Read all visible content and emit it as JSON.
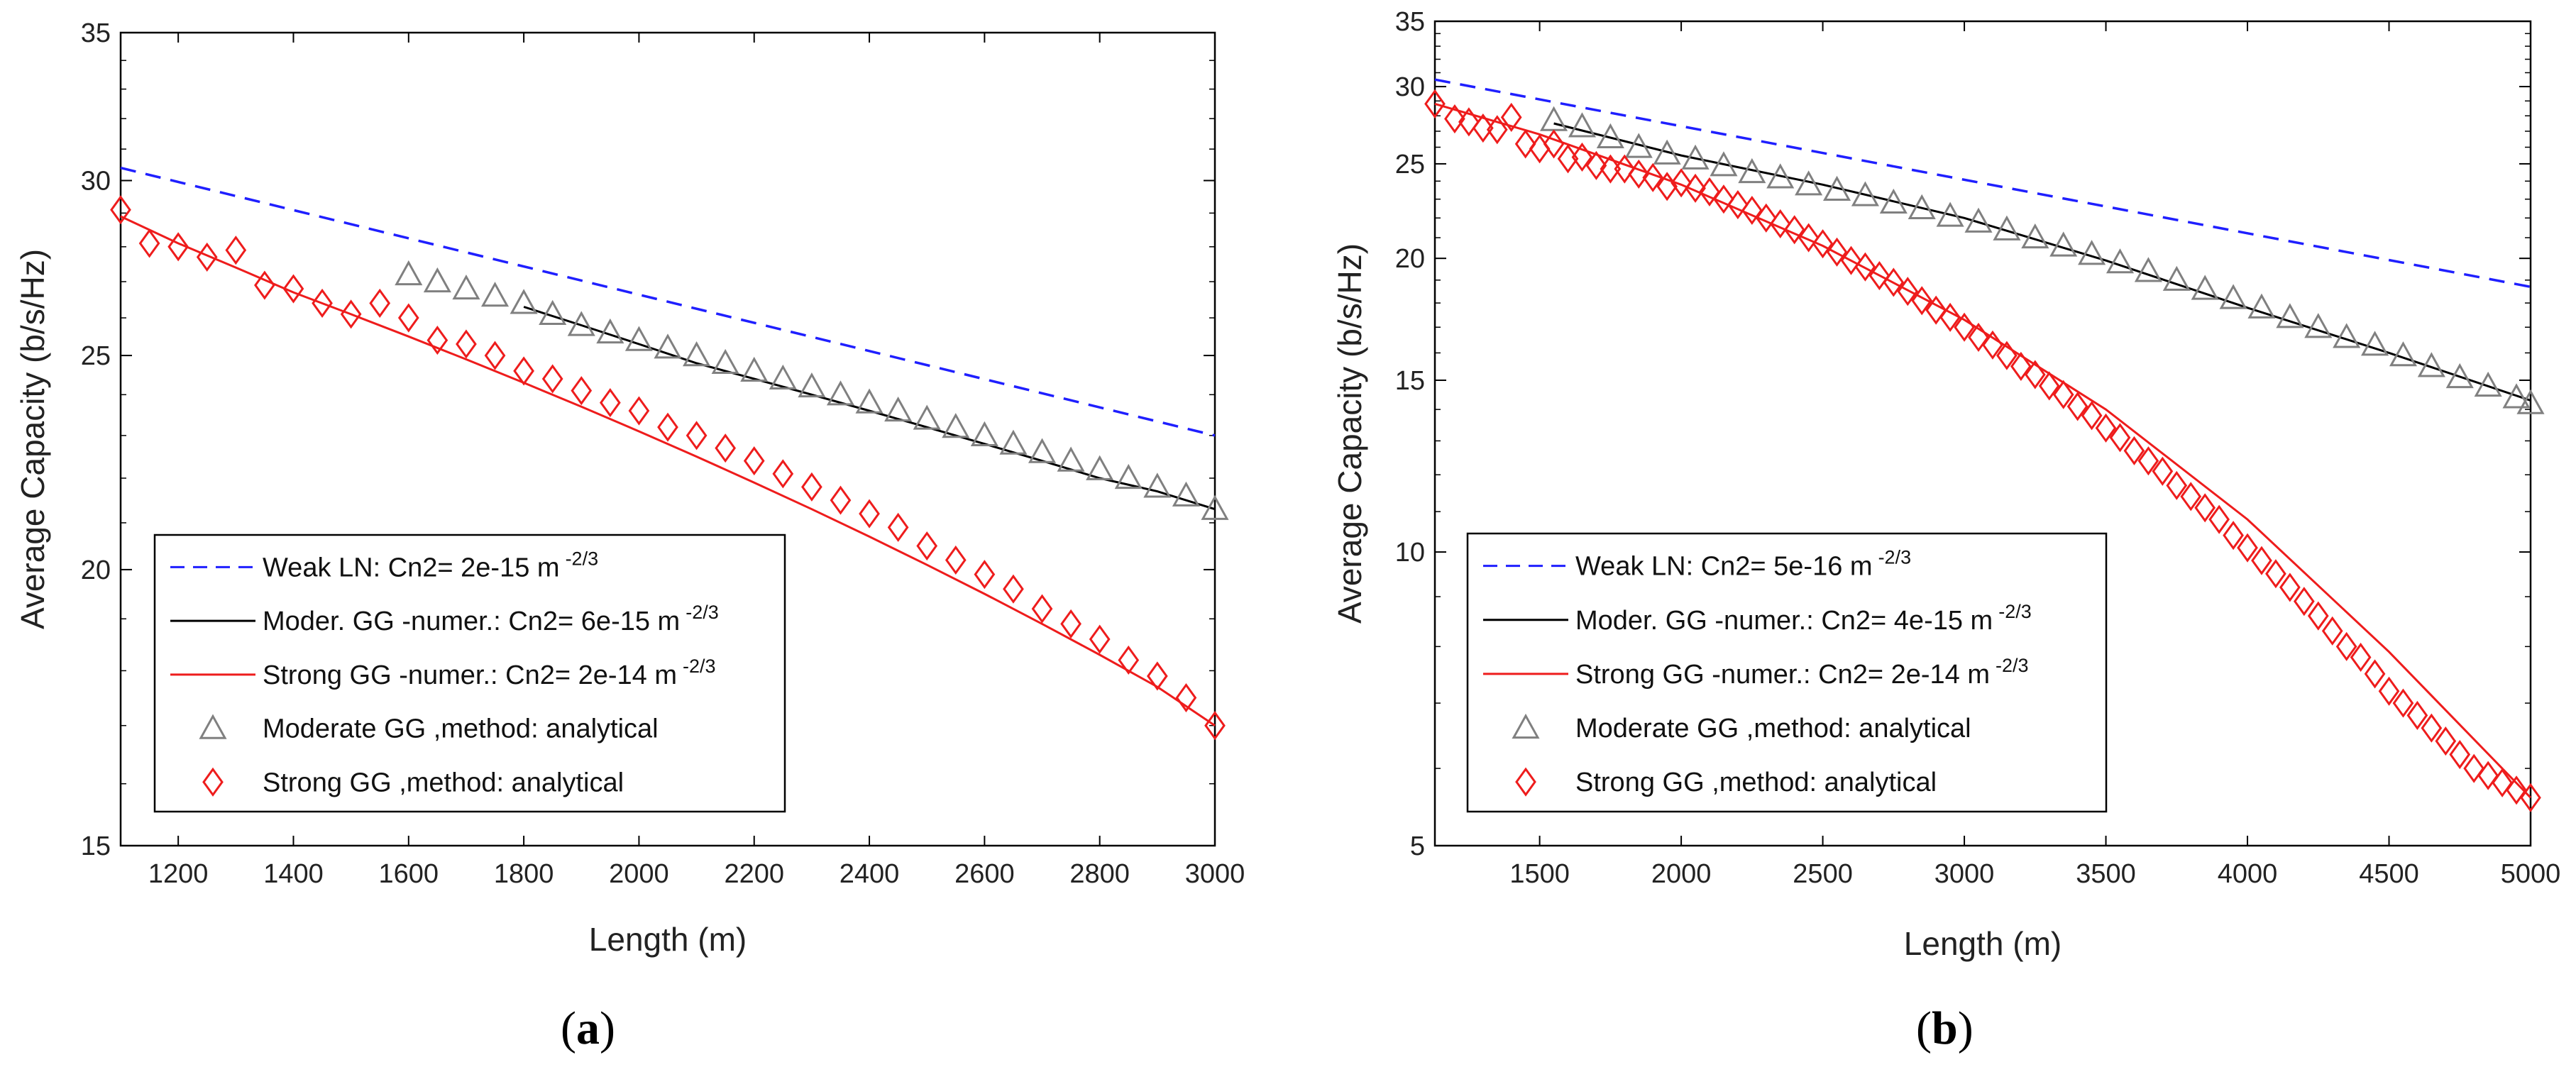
{
  "chart_data": [
    {
      "panel": "(a)",
      "type": "line",
      "xlabel": "Length (m)",
      "ylabel": "Average Capacity (b/s/Hz)",
      "xlim": [
        1100,
        3000
      ],
      "ylim": [
        15,
        35
      ],
      "y_scale": "log",
      "xticks": [
        1200,
        1400,
        1600,
        1800,
        2000,
        2200,
        2400,
        2600,
        2800,
        3000
      ],
      "yticks": [
        15,
        20,
        25,
        30,
        35
      ],
      "grid": false,
      "legend_position": "bottom-left",
      "series": [
        {
          "name": "Weak LN: Cn2= 2e-15 m",
          "label_sup": "-2/3",
          "style": "dashed",
          "color": "#1f1fff",
          "x": [
            1100,
            3000
          ],
          "y": [
            30.4,
            23.0
          ]
        },
        {
          "name": "Moder. GG -numer.: Cn2= 6e-15 m",
          "label_sup": "-2/3",
          "style": "solid",
          "color": "#000000",
          "x": [
            1800,
            1900,
            2000,
            2100,
            2200,
            2300,
            2400,
            2500,
            2600,
            2700,
            2800,
            2900,
            3000
          ],
          "y": [
            26.3,
            25.8,
            25.3,
            24.8,
            24.4,
            24.0,
            23.6,
            23.2,
            22.8,
            22.4,
            22.0,
            21.7,
            21.3
          ]
        },
        {
          "name": "Strong GG -numer.: Cn2= 2e-14 m",
          "label_sup": "-2/3",
          "style": "solid",
          "color": "#ee1c1c",
          "x": [
            1100,
            1200,
            1300,
            1400,
            1500,
            1600,
            1700,
            1800,
            1900,
            2000,
            2100,
            2200,
            2300,
            2400,
            2500,
            2600,
            2700,
            2800,
            2900,
            3000
          ],
          "y": [
            28.9,
            28.1,
            27.4,
            26.7,
            26.1,
            25.5,
            24.9,
            24.3,
            23.7,
            23.1,
            22.5,
            21.9,
            21.3,
            20.7,
            20.1,
            19.5,
            18.9,
            18.3,
            17.7,
            17.0
          ]
        },
        {
          "name": "Moderate GG ,method: analytical",
          "style": "marker",
          "marker": "triangle",
          "color": "#808080",
          "x": [
            1600,
            1650,
            1700,
            1750,
            1800,
            1850,
            1900,
            1950,
            2000,
            2050,
            2100,
            2150,
            2200,
            2250,
            2300,
            2350,
            2400,
            2450,
            2500,
            2550,
            2600,
            2650,
            2700,
            2750,
            2800,
            2850,
            2900,
            2950,
            3000
          ],
          "y": [
            27.2,
            27.0,
            26.8,
            26.6,
            26.4,
            26.1,
            25.8,
            25.6,
            25.4,
            25.2,
            25.0,
            24.8,
            24.6,
            24.4,
            24.2,
            24.0,
            23.8,
            23.6,
            23.4,
            23.2,
            23.0,
            22.8,
            22.6,
            22.4,
            22.2,
            22.0,
            21.8,
            21.6,
            21.3
          ]
        },
        {
          "name": "Strong GG ,method: analytical",
          "style": "marker",
          "marker": "diamond",
          "color": "#ee1c1c",
          "x": [
            1100,
            1150,
            1200,
            1250,
            1300,
            1350,
            1400,
            1450,
            1500,
            1550,
            1600,
            1650,
            1700,
            1750,
            1800,
            1850,
            1900,
            1950,
            2000,
            2050,
            2100,
            2150,
            2200,
            2250,
            2300,
            2350,
            2400,
            2450,
            2500,
            2550,
            2600,
            2650,
            2700,
            2750,
            2800,
            2850,
            2900,
            2950,
            3000
          ],
          "y": [
            29.1,
            28.1,
            28.0,
            27.7,
            27.9,
            26.9,
            26.8,
            26.4,
            26.1,
            26.4,
            26.0,
            25.4,
            25.3,
            25.0,
            24.6,
            24.4,
            24.1,
            23.8,
            23.6,
            23.2,
            23.0,
            22.7,
            22.4,
            22.1,
            21.8,
            21.5,
            21.2,
            20.9,
            20.5,
            20.2,
            19.9,
            19.6,
            19.2,
            18.9,
            18.6,
            18.2,
            17.9,
            17.5,
            17.0
          ]
        }
      ]
    },
    {
      "panel": "(b)",
      "type": "line",
      "xlabel": "Length (m)",
      "ylabel": "Average Capacity (b/s/Hz)",
      "xlim": [
        1130,
        5000
      ],
      "ylim": [
        5,
        35
      ],
      "y_scale": "log",
      "xticks": [
        1500,
        2000,
        2500,
        3000,
        3500,
        4000,
        4500,
        5000
      ],
      "yticks": [
        5,
        10,
        15,
        20,
        25,
        30,
        35
      ],
      "grid": false,
      "legend_position": "bottom-left",
      "series": [
        {
          "name": "Weak LN: Cn2= 5e-16 m",
          "label_sup": "-2/3",
          "style": "dashed",
          "color": "#1f1fff",
          "x": [
            1130,
            5000
          ],
          "y": [
            30.5,
            18.7
          ]
        },
        {
          "name": "Moder. GG -numer.: Cn2= 4e-15 m",
          "label_sup": "-2/3",
          "style": "solid",
          "color": "#000000",
          "x": [
            1550,
            2000,
            2500,
            3000,
            3500,
            4000,
            4500,
            5000
          ],
          "y": [
            27.5,
            25.5,
            23.8,
            22.0,
            19.9,
            17.8,
            16.0,
            14.3
          ]
        },
        {
          "name": "Strong GG -numer.: Cn2= 2e-14 m",
          "label_sup": "-2/3",
          "style": "solid",
          "color": "#ee1c1c",
          "x": [
            1130,
            1500,
            2000,
            2500,
            3000,
            3500,
            4000,
            4500,
            5000
          ],
          "y": [
            28.8,
            26.8,
            23.8,
            20.6,
            17.3,
            14.0,
            10.8,
            7.9,
            5.6
          ]
        },
        {
          "name": "Moderate GG ,method: analytical",
          "style": "marker",
          "marker": "triangle",
          "color": "#808080",
          "x": [
            1550,
            1650,
            1750,
            1850,
            1950,
            2050,
            2150,
            2250,
            2350,
            2450,
            2550,
            2650,
            2750,
            2850,
            2950,
            3050,
            3150,
            3250,
            3350,
            3450,
            3550,
            3650,
            3750,
            3850,
            3950,
            4050,
            4150,
            4250,
            4350,
            4450,
            4550,
            4650,
            4750,
            4850,
            4950,
            5000
          ],
          "y": [
            27.7,
            27.3,
            26.6,
            26.0,
            25.6,
            25.3,
            24.9,
            24.5,
            24.2,
            23.8,
            23.5,
            23.2,
            22.8,
            22.5,
            22.1,
            21.8,
            21.4,
            21.0,
            20.6,
            20.2,
            19.8,
            19.4,
            19.0,
            18.6,
            18.2,
            17.8,
            17.4,
            17.0,
            16.6,
            16.3,
            15.9,
            15.5,
            15.1,
            14.8,
            14.4,
            14.2
          ]
        },
        {
          "name": "Strong GG ,method: analytical",
          "style": "marker",
          "marker": "diamond",
          "color": "#ee1c1c",
          "x": [
            1130,
            1200,
            1250,
            1300,
            1350,
            1400,
            1450,
            1500,
            1550,
            1600,
            1650,
            1700,
            1750,
            1800,
            1850,
            1900,
            1950,
            2000,
            2050,
            2100,
            2150,
            2200,
            2250,
            2300,
            2350,
            2400,
            2450,
            2500,
            2550,
            2600,
            2650,
            2700,
            2750,
            2800,
            2850,
            2900,
            2950,
            3000,
            3050,
            3100,
            3150,
            3200,
            3250,
            3300,
            3350,
            3400,
            3450,
            3500,
            3550,
            3600,
            3650,
            3700,
            3750,
            3800,
            3850,
            3900,
            3950,
            4000,
            4050,
            4100,
            4150,
            4200,
            4250,
            4300,
            4350,
            4400,
            4450,
            4500,
            4550,
            4600,
            4650,
            4700,
            4750,
            4800,
            4850,
            4900,
            4950,
            5000
          ],
          "y": [
            28.8,
            27.8,
            27.6,
            27.2,
            27.1,
            27.9,
            26.2,
            25.9,
            26.2,
            25.3,
            25.4,
            24.9,
            24.7,
            24.7,
            24.4,
            24.2,
            23.7,
            23.9,
            23.6,
            23.4,
            23.0,
            22.7,
            22.4,
            22.0,
            21.7,
            21.4,
            21.0,
            20.7,
            20.3,
            19.9,
            19.6,
            19.2,
            18.9,
            18.5,
            18.1,
            17.7,
            17.4,
            17.0,
            16.6,
            16.3,
            15.9,
            15.5,
            15.2,
            14.8,
            14.5,
            14.1,
            13.8,
            13.4,
            13.1,
            12.7,
            12.4,
            12.1,
            11.7,
            11.4,
            11.1,
            10.8,
            10.4,
            10.1,
            9.8,
            9.5,
            9.2,
            8.9,
            8.6,
            8.3,
            8.0,
            7.8,
            7.5,
            7.2,
            7.0,
            6.8,
            6.6,
            6.4,
            6.2,
            6.0,
            5.9,
            5.8,
            5.7,
            5.6
          ]
        }
      ]
    }
  ]
}
